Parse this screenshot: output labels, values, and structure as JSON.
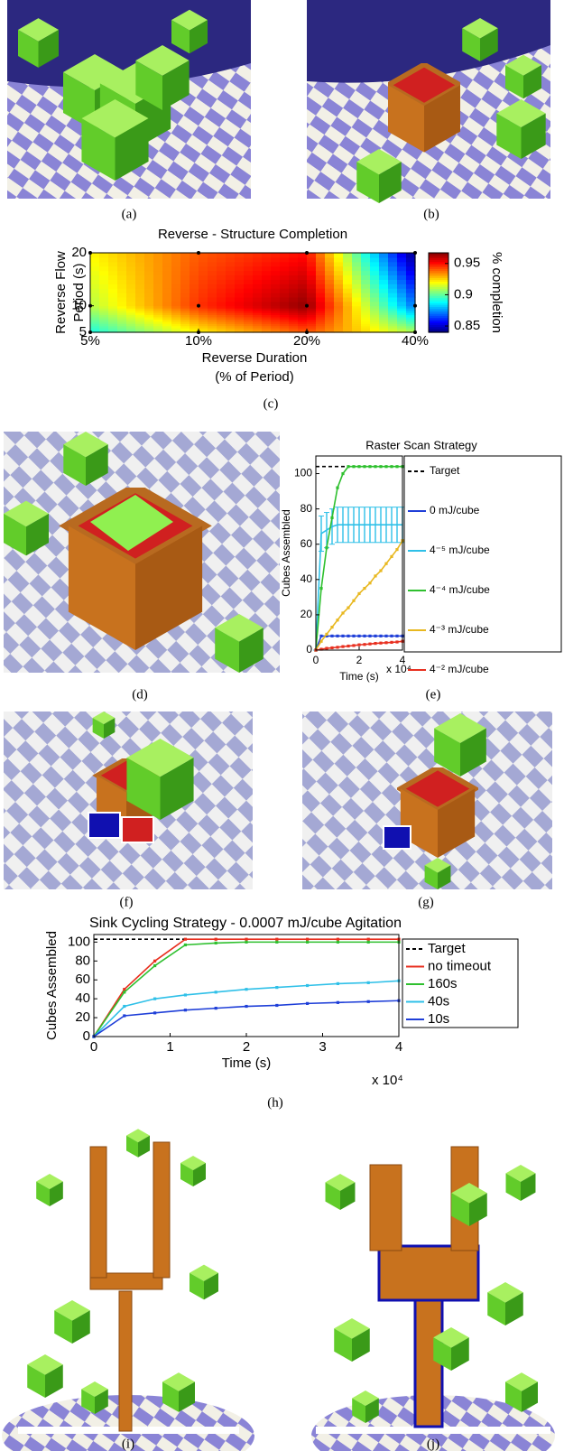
{
  "captions": [
    "(a)",
    "(b)",
    "(c)",
    "(d)",
    "(e)",
    "(f)",
    "(g)",
    "(h)",
    "(i)",
    "(j)"
  ],
  "chart_data": [
    {
      "type": "heatmap",
      "title": "Reverse - Structure Completion",
      "xlabel": [
        "Reverse Duration",
        "(% of Period)"
      ],
      "ylabel": [
        "Reverse Flow",
        "Period (s)"
      ],
      "colorbar_label": "% completion",
      "colormap": "jet",
      "x": [
        5,
        10,
        20,
        40
      ],
      "y": [
        5,
        10,
        20
      ],
      "z": [
        [
          0.89,
          0.92,
          0.94,
          0.91
        ],
        [
          0.91,
          0.945,
          0.965,
          0.87
        ],
        [
          0.92,
          0.94,
          0.95,
          0.84
        ]
      ],
      "xscale": "log",
      "xlim": [
        5,
        40
      ],
      "ylim": [
        5,
        20
      ],
      "xticks": [
        {
          "value": 5,
          "label": "5%"
        },
        {
          "value": 10,
          "label": "10%"
        },
        {
          "value": 20,
          "label": "20%"
        },
        {
          "value": 40,
          "label": "40%"
        }
      ],
      "yticks": [
        5,
        10,
        20
      ],
      "clim": [
        0.84,
        0.967
      ],
      "cticks": [
        0.85,
        0.9,
        0.95
      ]
    },
    {
      "type": "line",
      "title": "Raster Scan Strategy",
      "xlabel": "Time (s)",
      "ylabel": "Cubes Assembled",
      "x_multiplier": "x 10⁴",
      "x": [
        0,
        0.25,
        0.5,
        0.75,
        1,
        1.25,
        1.5,
        1.75,
        2,
        2.25,
        2.5,
        2.75,
        3,
        3.25,
        3.5,
        3.75,
        4
      ],
      "series": [
        {
          "name": "Target",
          "color": "#000000",
          "dashed": true,
          "values": [
            104,
            104,
            104,
            104,
            104,
            104,
            104,
            null,
            null,
            null,
            null,
            null,
            null,
            null,
            null,
            null,
            null
          ]
        },
        {
          "name": "0 mJ/cube",
          "color": "#1f3fd8",
          "values": [
            0,
            8,
            8,
            8,
            8,
            8,
            8,
            8,
            8,
            8,
            8,
            8,
            8,
            8,
            8,
            8,
            8
          ]
        },
        {
          "name": "4⁻⁵ mJ/cube",
          "color": "#2fc0e8",
          "values": [
            0,
            66,
            68,
            70,
            71,
            71,
            71,
            71,
            71,
            71,
            71,
            71,
            71,
            71,
            71,
            71,
            71
          ],
          "errors": [
            0,
            10,
            10,
            10,
            10,
            10,
            10,
            10,
            10,
            10,
            10,
            10,
            10,
            10,
            10,
            10,
            10
          ]
        },
        {
          "name": "4⁻⁴ mJ/cube",
          "color": "#2fc02f",
          "values": [
            0,
            35,
            58,
            75,
            92,
            100,
            104,
            104,
            104,
            104,
            104,
            104,
            104,
            104,
            104,
            104,
            104
          ]
        },
        {
          "name": "4⁻³ mJ/cube",
          "color": "#e8b820",
          "values": [
            0,
            5,
            9,
            13,
            17,
            21,
            24,
            28,
            32,
            35,
            38,
            42,
            45,
            49,
            53,
            57,
            62
          ]
        },
        {
          "name": "4⁻² mJ/cube",
          "color": "#e83020",
          "values": [
            0,
            0.5,
            1,
            1.3,
            1.6,
            2,
            2.3,
            2.6,
            3,
            3.2,
            3.5,
            3.8,
            4,
            4.2,
            4.4,
            4.6,
            5
          ]
        }
      ],
      "xlim": [
        0,
        4
      ],
      "xticks": [
        0,
        2,
        4
      ],
      "ylim": [
        0,
        110
      ],
      "yticks": [
        0,
        20,
        40,
        60,
        80,
        100
      ],
      "legend": "outside-right"
    },
    {
      "type": "line",
      "title": "Sink Cycling Strategy - 0.0007 mJ/cube Agitation",
      "xlabel": "Time (s)",
      "ylabel": "Cubes Assembled",
      "x_multiplier": "x 10⁴",
      "x": [
        0,
        0.4,
        0.8,
        1.2,
        1.6,
        2,
        2.4,
        2.8,
        3.2,
        3.6,
        4
      ],
      "series": [
        {
          "name": "Target",
          "color": "#000000",
          "dashed": true,
          "values": [
            103,
            103,
            103,
            103,
            null,
            null,
            null,
            null,
            null,
            null,
            null
          ]
        },
        {
          "name": "no timeout",
          "color": "#e83020",
          "values": [
            0,
            50,
            80,
            103,
            103,
            103,
            103,
            103,
            103,
            103,
            103
          ]
        },
        {
          "name": "160s",
          "color": "#2fc02f",
          "values": [
            0,
            47,
            75,
            97,
            99,
            100,
            100,
            100,
            100,
            100,
            100
          ]
        },
        {
          "name": "40s",
          "color": "#2fc0e8",
          "values": [
            0,
            32,
            40,
            44,
            47,
            50,
            52,
            54,
            56,
            57,
            59
          ]
        },
        {
          "name": "10s",
          "color": "#1f3fd8",
          "values": [
            0,
            22,
            25,
            28,
            30,
            32,
            33,
            35,
            36,
            37,
            38
          ]
        }
      ],
      "xlim": [
        0,
        4
      ],
      "xticks": [
        0,
        1,
        2,
        3,
        4
      ],
      "ylim": [
        0,
        108
      ],
      "yticks": [
        0,
        20,
        40,
        60,
        80,
        100
      ],
      "legend": "outside-right"
    }
  ]
}
